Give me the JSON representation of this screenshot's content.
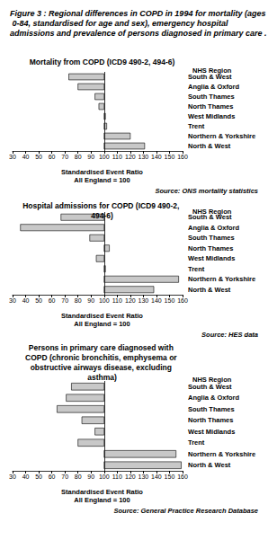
{
  "title": "Figure 3 : Regional differences in COPD in 1994 for mortality (ages 0-84, standardised for age and sex), emergency hospital admissions and prevalence of persons diagnosed in primary care .",
  "chart_data": [
    {
      "type": "bar",
      "orientation": "horizontal",
      "grid": false,
      "title": "Mortality from COPD (ICD9 490-2, 494-6)",
      "ylabel": "NHS Region",
      "xlabel": "Standardised Event Ratio\nAll England = 100",
      "source": "Source: ONS mortality statistics",
      "categories": [
        "South & West",
        "Anglia & Oxford",
        "South Thames",
        "North Thames",
        "West Midlands",
        "Trent",
        "Northern & Yorkshire",
        "North & West"
      ],
      "values": [
        73,
        80,
        93,
        96,
        101,
        102,
        120,
        131
      ],
      "baseline": 100,
      "color": "#c8c8c8",
      "xlim": [
        30,
        160
      ],
      "xticks": [
        30,
        40,
        50,
        60,
        70,
        80,
        90,
        100,
        110,
        120,
        130,
        140,
        150,
        160
      ]
    },
    {
      "type": "bar",
      "orientation": "horizontal",
      "grid": false,
      "title": "Hospital admissions for COPD (ICD9 490-2, 494-6)",
      "ylabel": "NHS Region",
      "xlabel": "Standardised Event Ratio\nAll England = 100",
      "source": "Source: HES data",
      "categories": [
        "South & West",
        "Anglia & Oxford",
        "South Thames",
        "North Thames",
        "West Midlands",
        "Trent",
        "Northern & Yorkshire",
        "North & West"
      ],
      "values": [
        67,
        36,
        89,
        104,
        94,
        101,
        157,
        138
      ],
      "baseline": 100,
      "color": "#c8c8c8",
      "xlim": [
        30,
        160
      ],
      "xticks": [
        30,
        40,
        50,
        60,
        70,
        80,
        90,
        100,
        110,
        120,
        130,
        140,
        150,
        160
      ]
    },
    {
      "type": "bar",
      "orientation": "horizontal",
      "grid": false,
      "title": "Persons in primary care diagnosed with COPD (chronic bronchitis, emphysema or obstructive airways disease, excluding asthma)",
      "ylabel": "NHS Region",
      "xlabel": "Standardised Event Ratio\nAll England = 100",
      "source": "Source: General Practice Research Database",
      "categories": [
        "South & West",
        "Anglia & Oxford",
        "South Thames",
        "North Thames",
        "West Midlands",
        "Trent",
        "Northern & Yorkshire",
        "North & West"
      ],
      "values": [
        75,
        71,
        64,
        83,
        93,
        80,
        155,
        159
      ],
      "baseline": 100,
      "color": "#c8c8c8",
      "xlim": [
        30,
        160
      ],
      "xticks": [
        30,
        40,
        50,
        60,
        70,
        80,
        90,
        100,
        110,
        120,
        130,
        140,
        150,
        160
      ]
    }
  ]
}
